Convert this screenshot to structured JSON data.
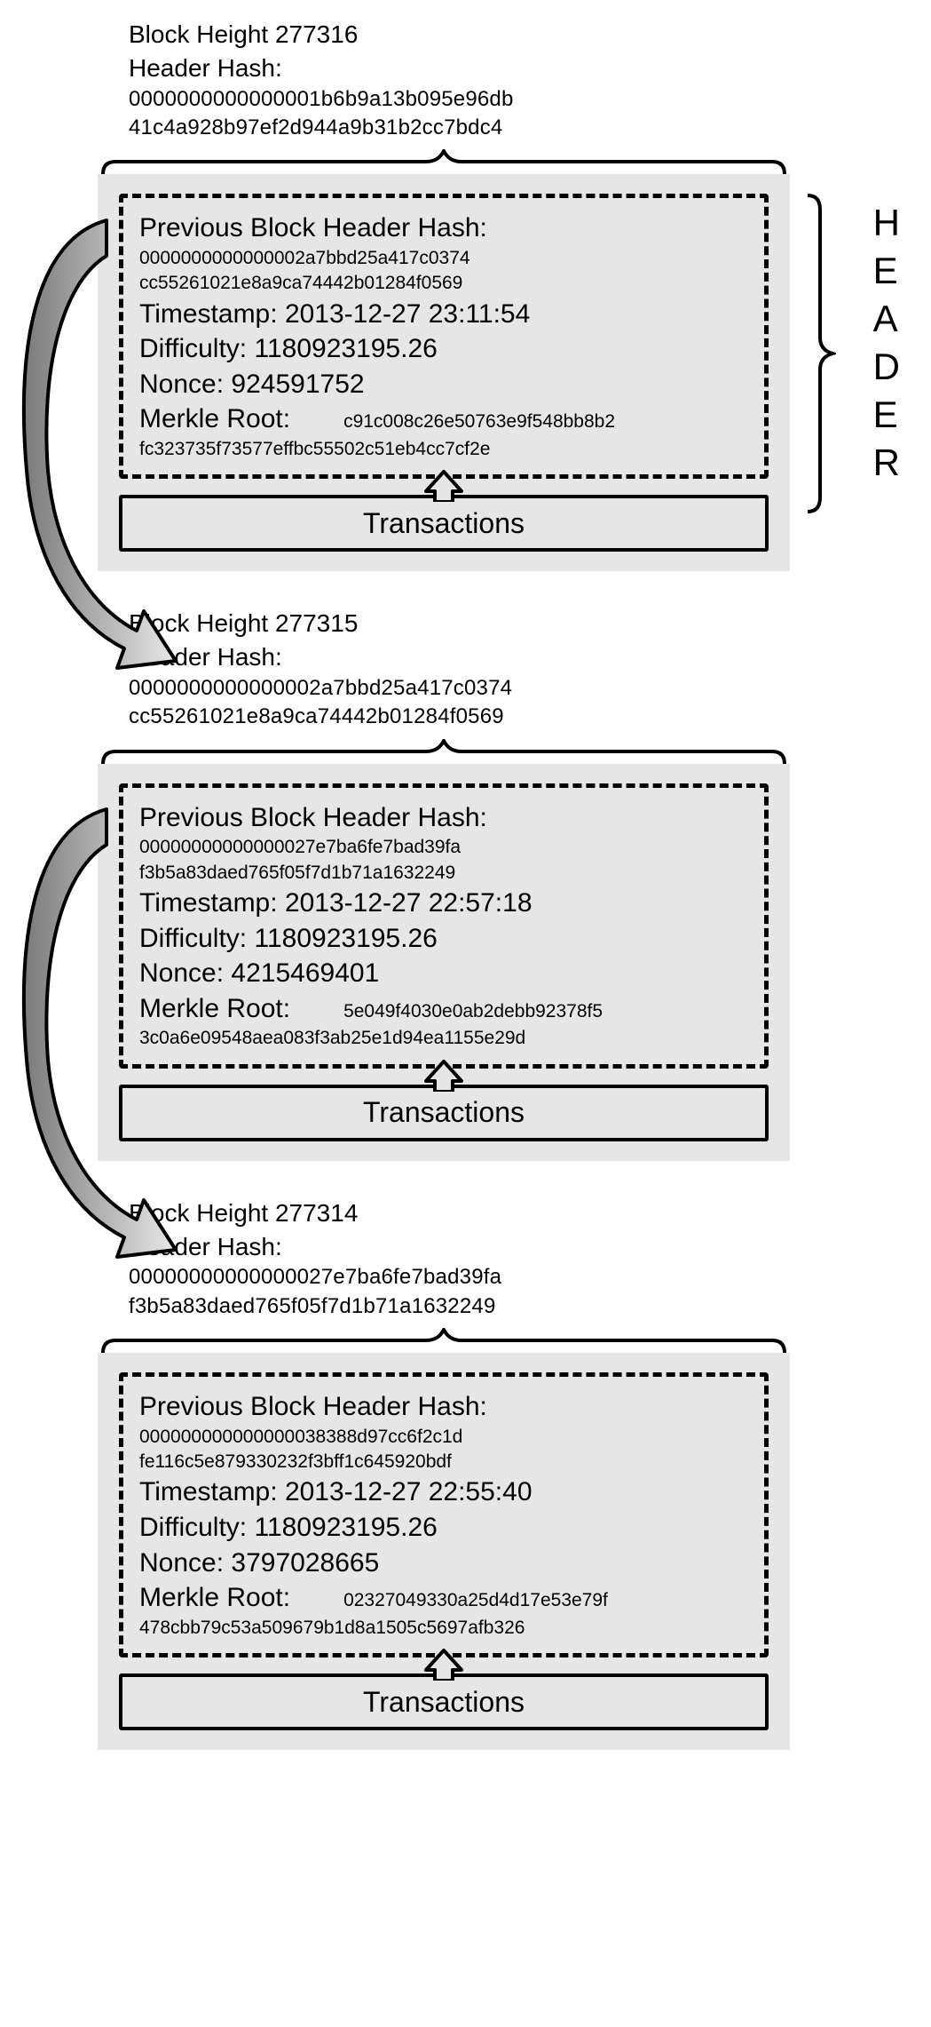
{
  "labels": {
    "block_height_prefix": "Block Height",
    "header_hash": "Header Hash:",
    "prev_hash": "Previous Block Header Hash:",
    "timestamp": "Timestamp:",
    "difficulty": "Difficulty:",
    "nonce": "Nonce:",
    "merkle": "Merkle Root:",
    "transactions": "Transactions",
    "header_vert": [
      "H",
      "E",
      "A",
      "D",
      "E",
      "R"
    ]
  },
  "style": {
    "card_bg": "#e6e6e6",
    "border_color": "#000000",
    "dash_width": 5,
    "solid_width": 4,
    "arrow_fill": "#e8e8e8",
    "arrow_stroke": "#000000",
    "font_main": 30,
    "font_hash": 21,
    "font_meta": 28
  },
  "blocks": [
    {
      "height": "277316",
      "header_hash_l1": "0000000000000001b6b9a13b095e96db",
      "header_hash_l2": "41c4a928b97ef2d944a9b31b2cc7bdc4",
      "prev_hash_l1": "0000000000000002a7bbd25a417c0374",
      "prev_hash_l2": "cc55261021e8a9ca74442b01284f0569",
      "timestamp": "2013-12-27 23:11:54",
      "difficulty": "1180923195.26",
      "nonce": "924591752",
      "merkle_l1": "c91c008c26e50763e9f548bb8b2",
      "merkle_l2": "fc323735f73577effbc55502c51eb4cc7cf2e",
      "show_header_label": true
    },
    {
      "height": "277315",
      "header_hash_l1": "0000000000000002a7bbd25a417c0374",
      "header_hash_l2": "cc55261021e8a9ca74442b01284f0569",
      "prev_hash_l1": "00000000000000027e7ba6fe7bad39fa",
      "prev_hash_l2": "f3b5a83daed765f05f7d1b71a1632249",
      "timestamp": "2013-12-27 22:57:18",
      "difficulty": "1180923195.26",
      "nonce": "4215469401",
      "merkle_l1": "5e049f4030e0ab2debb92378f5",
      "merkle_l2": "3c0a6e09548aea083f3ab25e1d94ea1155e29d",
      "show_header_label": false
    },
    {
      "height": "277314",
      "header_hash_l1": "00000000000000027e7ba6fe7bad39fa",
      "header_hash_l2": "f3b5a83daed765f05f7d1b71a1632249",
      "prev_hash_l1": "000000000000000038388d97cc6f2c1d",
      "prev_hash_l2": "fe116c5e879330232f3bff1c645920bdf",
      "timestamp": "2013-12-27 22:55:40",
      "difficulty": "1180923195.26",
      "nonce": "3797028665",
      "merkle_l1": "02327049330a25d4d17e53e79f",
      "merkle_l2": "478cbb79c53a509679b1d8a1505c5697afb326",
      "show_header_label": false
    }
  ]
}
